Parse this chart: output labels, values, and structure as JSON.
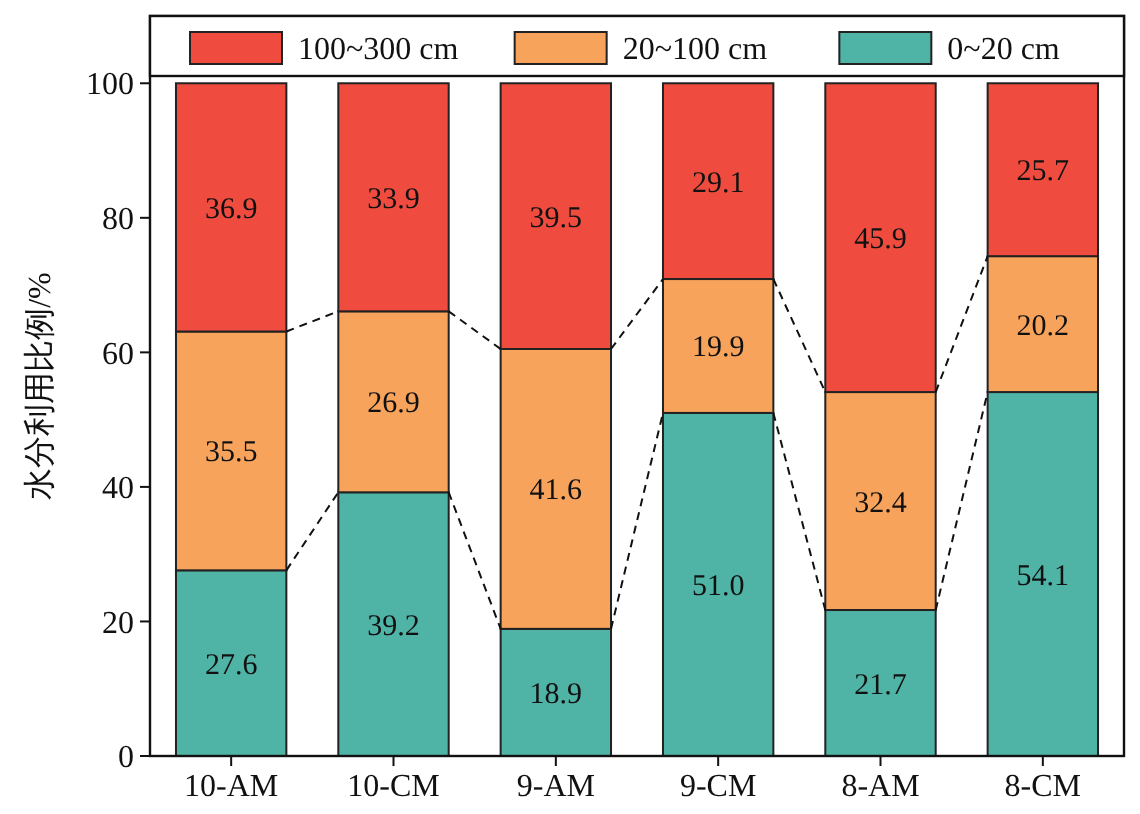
{
  "chart_data": {
    "type": "bar",
    "stacked": true,
    "ylabel": "水分利用比例/%",
    "categories": [
      "10-AM",
      "10-CM",
      "9-AM",
      "9-CM",
      "8-AM",
      "8-CM"
    ],
    "series": [
      {
        "name": "0~20 cm",
        "color": "#4fb3a6",
        "values": [
          27.6,
          39.2,
          18.9,
          51.0,
          21.7,
          54.1
        ],
        "value_labels": [
          "27.6",
          "39.2",
          "18.9",
          "51.0",
          "21.7",
          "54.1"
        ]
      },
      {
        "name": "20~100 cm",
        "color": "#f7a35c",
        "values": [
          35.5,
          26.9,
          41.6,
          19.9,
          32.4,
          20.2
        ],
        "value_labels": [
          "35.5",
          "26.9",
          "41.6",
          "19.9",
          "32.4",
          "20.2"
        ]
      },
      {
        "name": "100~300 cm",
        "color": "#ef4c3f",
        "values": [
          36.9,
          33.9,
          39.5,
          29.1,
          45.9,
          25.7
        ],
        "value_labels": [
          "36.9",
          "33.9",
          "39.5",
          "29.1",
          "45.9",
          "25.7"
        ]
      }
    ],
    "ylim": [
      0,
      110
    ],
    "yticks": [
      0,
      20,
      40,
      60,
      80,
      100
    ],
    "legend": "top",
    "grid": false
  }
}
